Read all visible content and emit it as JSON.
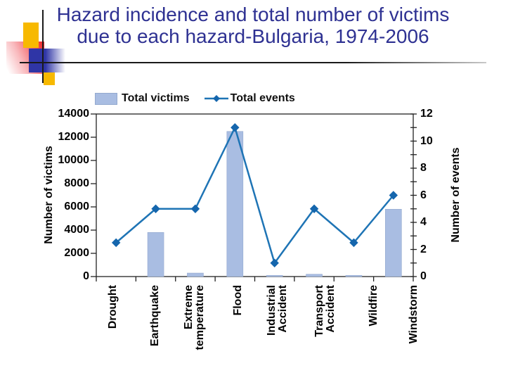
{
  "slide": {
    "title_line1": "Hazard incidence and total number of victims",
    "title_line2": "due to each hazard-Bulgaria, 1974-2006",
    "title_color": "#2E3192"
  },
  "legend": {
    "victims_label": "Total victims",
    "events_label": "Total events"
  },
  "colors": {
    "bar_fill": "#A9BDE2",
    "bar_stroke": "#93A9CF",
    "line": "#1E74B5",
    "marker": "#1566AD",
    "axis": "#222222"
  },
  "chart_data": {
    "type": "combo",
    "title": "Hazard incidence and total number of victims due to each hazard-Bulgaria, 1974-2006",
    "categories": [
      "Drought",
      "Earthquake",
      "Extreme\ntemperature",
      "Flood",
      "Industrial\nAccident",
      "Transport\nAccident",
      "Wildfire",
      "Windstorm"
    ],
    "series": [
      {
        "name": "Total victims",
        "type": "bar",
        "axis": "left",
        "values": [
          0,
          3800,
          300,
          12500,
          100,
          200,
          100,
          5800
        ]
      },
      {
        "name": "Total events",
        "type": "line",
        "axis": "right",
        "values": [
          2.5,
          5,
          5,
          11,
          1,
          5,
          2.5,
          6
        ]
      }
    ],
    "left_axis": {
      "title": "Number of victims",
      "min": 0,
      "max": 14000,
      "tick_step": 2000,
      "ticks": [
        0,
        2000,
        4000,
        6000,
        8000,
        10000,
        12000,
        14000
      ]
    },
    "right_axis": {
      "title": "Number of events",
      "min": 0,
      "max": 12,
      "tick_step": 2,
      "minor_tick_step": 1,
      "ticks": [
        0,
        2,
        4,
        6,
        8,
        10,
        12
      ]
    },
    "grid": false,
    "legend_position": "top-left"
  }
}
